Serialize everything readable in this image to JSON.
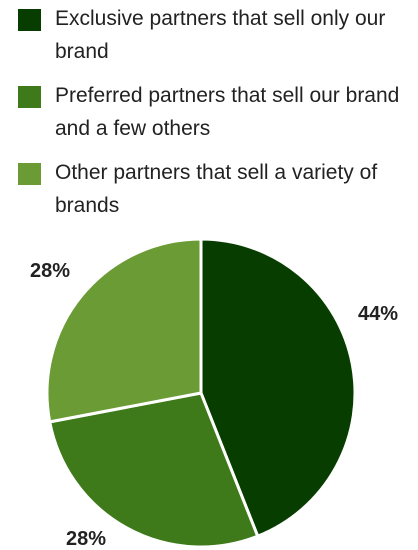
{
  "chart_data": {
    "type": "pie",
    "title": "",
    "legend_position": "top",
    "categories": [
      "Exclusive partners that sell only our brand",
      "Preferred partners that sell our brand and a few others",
      "Other partners that sell a variety of brands"
    ],
    "values": [
      44,
      28,
      28
    ],
    "data_labels": [
      "44%",
      "28%",
      "28%"
    ],
    "colors": [
      "#083d00",
      "#3e7a1a",
      "#6b9b35"
    ]
  }
}
